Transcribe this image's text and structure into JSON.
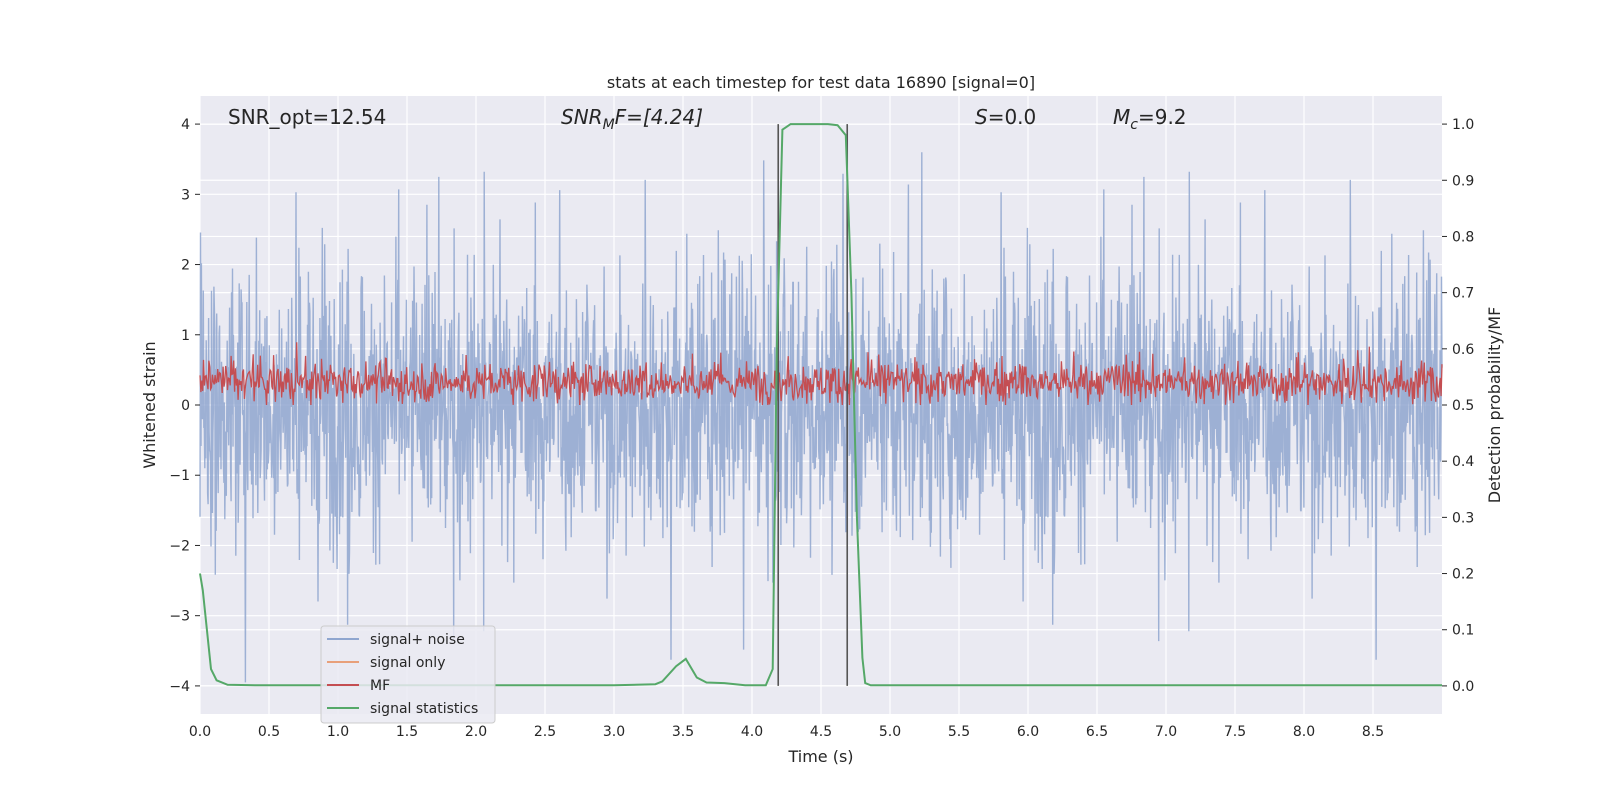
{
  "chart_data": {
    "type": "line",
    "title": "stats at each timestep for test data 16890 [signal=0]",
    "xlabel": "Time (s)",
    "ylabel_left": "Whitened strain",
    "ylabel_right": "Detection probability/MF",
    "xlim": [
      0.0,
      9.0
    ],
    "ylim_left": [
      -4.4,
      4.4
    ],
    "ylim_right": [
      -0.05,
      1.05
    ],
    "grid": true,
    "legend_position": "lower-left",
    "x_ticks": [
      "0.0",
      "0.5",
      "1.0",
      "1.5",
      "2.0",
      "2.5",
      "3.0",
      "3.5",
      "4.0",
      "4.5",
      "5.0",
      "5.5",
      "6.0",
      "6.5",
      "7.0",
      "7.5",
      "8.0",
      "8.5"
    ],
    "x_tick_values": [
      0.0,
      0.5,
      1.0,
      1.5,
      2.0,
      2.5,
      3.0,
      3.5,
      4.0,
      4.5,
      5.0,
      5.5,
      6.0,
      6.5,
      7.0,
      7.5,
      8.0,
      8.5
    ],
    "y_left_ticks": [
      "4",
      "3",
      "2",
      "1",
      "0",
      "−1",
      "−2",
      "−3",
      "−4"
    ],
    "y_left_tick_values": [
      4,
      3,
      2,
      1,
      0,
      -1,
      -2,
      -3,
      -4
    ],
    "y_right_ticks": [
      "1.0",
      "0.9",
      "0.8",
      "0.7",
      "0.6",
      "0.5",
      "0.4",
      "0.3",
      "0.2",
      "0.1",
      "0.0"
    ],
    "y_right_tick_values": [
      1.0,
      0.9,
      0.8,
      0.7,
      0.6,
      0.5,
      0.4,
      0.3,
      0.2,
      0.1,
      0.0
    ],
    "annotations": {
      "snr_opt": {
        "text": "SNR_opt=12.54",
        "x": 0.2,
        "y": 4.1
      },
      "snr_mf_a": {
        "text": "SNR",
        "x": 2.6,
        "y": 4.1
      },
      "snr_mf_sub": {
        "text": "M",
        "x": 2.6,
        "y": 4.1
      },
      "snr_mf_b": {
        "text": "F=[4.24]",
        "x": 2.6,
        "y": 4.1
      },
      "s_a": {
        "text": "S",
        "x": 5.6,
        "y": 4.1
      },
      "s_b": {
        "text": "=0.0",
        "x": 5.6,
        "y": 4.1
      },
      "mc_a": {
        "text": "M",
        "x": 6.6,
        "y": 4.1
      },
      "mc_sub": {
        "text": "c",
        "x": 6.6,
        "y": 4.1
      },
      "mc_b": {
        "text": "=9.2",
        "x": 6.6,
        "y": 4.1
      }
    },
    "vertical_lines": [
      4.19,
      4.69
    ],
    "series": [
      {
        "name": "signal+ noise",
        "color": "#8fa6cf",
        "axis": "left",
        "description": "whitened strain noise, dense band roughly between -1.6 and 1.6 with spikes up to about 3.6 and down to about -3.8"
      },
      {
        "name": "signal only",
        "color": "#e8a07a",
        "axis": "left",
        "values": []
      },
      {
        "name": "MF",
        "color": "#c44e52",
        "axis": "right",
        "description": "matched-filter output oscillating between about 0.5 and 0.6 on the right axis"
      },
      {
        "name": "signal statistics",
        "color": "#55a868",
        "axis": "right",
        "x": [
          0.0,
          0.02,
          0.05,
          0.08,
          0.12,
          0.2,
          0.4,
          1.0,
          2.0,
          3.0,
          3.3,
          3.35,
          3.45,
          3.52,
          3.6,
          3.67,
          3.8,
          3.95,
          4.1,
          4.15,
          4.18,
          4.22,
          4.28,
          4.35,
          4.45,
          4.55,
          4.62,
          4.68,
          4.72,
          4.76,
          4.8,
          4.82,
          4.86,
          5.0,
          6.0,
          7.0,
          8.0,
          9.0
        ],
        "y": [
          0.2,
          0.17,
          0.1,
          0.03,
          0.01,
          0.002,
          0.001,
          0.001,
          0.001,
          0.001,
          0.003,
          0.008,
          0.035,
          0.048,
          0.015,
          0.006,
          0.005,
          0.001,
          0.001,
          0.03,
          0.6,
          0.99,
          1.0,
          1.0,
          1.0,
          1.0,
          0.998,
          0.98,
          0.7,
          0.3,
          0.05,
          0.005,
          0.001,
          0.001,
          0.001,
          0.001,
          0.001,
          0.001
        ]
      }
    ]
  }
}
